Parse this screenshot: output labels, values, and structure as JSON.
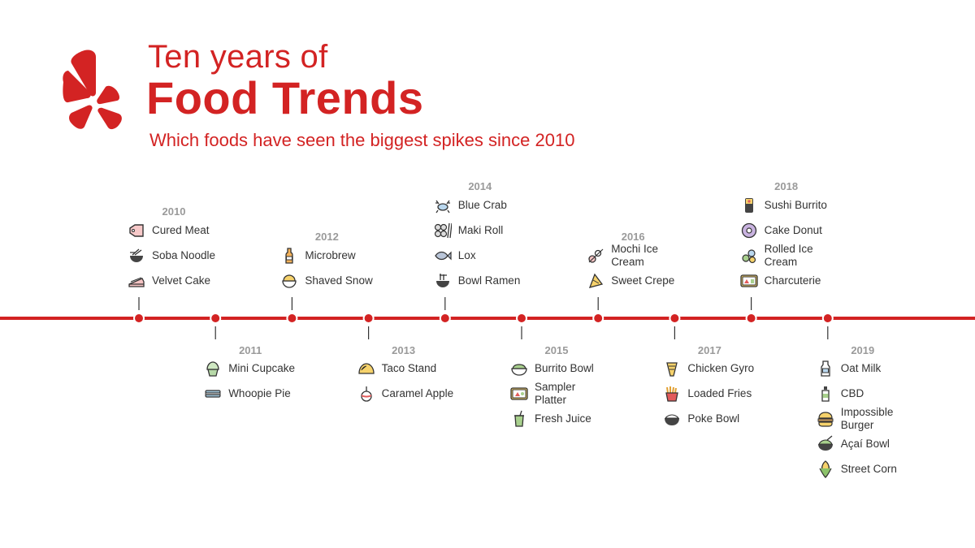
{
  "header": {
    "title_line1": "Ten years of",
    "title_line2": "Food Trends",
    "subtitle": "Which foods have seen the biggest spikes since 2010"
  },
  "colors": {
    "brand": "#d32323",
    "year": "#9a9a9a",
    "text": "#333333",
    "icon_stroke": "#333333"
  },
  "timeline": [
    {
      "year": "2010",
      "items": [
        {
          "label": "Cured Meat",
          "icon": "meat-tag-icon"
        },
        {
          "label": "Soba Noodle",
          "icon": "noodle-bowl-icon"
        },
        {
          "label": "Velvet Cake",
          "icon": "cake-slice-icon"
        }
      ]
    },
    {
      "year": "2011",
      "items": [
        {
          "label": "Mini Cupcake",
          "icon": "cupcake-icon"
        },
        {
          "label": "Whoopie Pie",
          "icon": "whoopie-pie-icon"
        }
      ]
    },
    {
      "year": "2012",
      "items": [
        {
          "label": "Microbrew",
          "icon": "beer-bottle-icon"
        },
        {
          "label": "Shaved Snow",
          "icon": "snow-bowl-icon"
        }
      ]
    },
    {
      "year": "2013",
      "items": [
        {
          "label": "Taco Stand",
          "icon": "taco-icon"
        },
        {
          "label": "Caramel Apple",
          "icon": "caramel-apple-icon"
        }
      ]
    },
    {
      "year": "2014",
      "items": [
        {
          "label": "Blue Crab",
          "icon": "crab-icon"
        },
        {
          "label": "Maki Roll",
          "icon": "maki-roll-icon"
        },
        {
          "label": "Lox",
          "icon": "fish-icon"
        },
        {
          "label": "Bowl Ramen",
          "icon": "ramen-bowl-icon"
        }
      ]
    },
    {
      "year": "2015",
      "items": [
        {
          "label": "Burrito Bowl",
          "icon": "burrito-bowl-icon"
        },
        {
          "label": "Sampler Platter",
          "icon": "platter-icon"
        },
        {
          "label": "Fresh Juice",
          "icon": "juice-cup-icon"
        }
      ]
    },
    {
      "year": "2016",
      "items": [
        {
          "label": "Mochi Ice Cream",
          "icon": "mochi-icon"
        },
        {
          "label": "Sweet Crepe",
          "icon": "crepe-icon"
        }
      ]
    },
    {
      "year": "2017",
      "items": [
        {
          "label": "Chicken Gyro",
          "icon": "gyro-icon"
        },
        {
          "label": "Loaded Fries",
          "icon": "fries-icon"
        },
        {
          "label": "Poke Bowl",
          "icon": "poke-bowl-icon"
        }
      ]
    },
    {
      "year": "2018",
      "items": [
        {
          "label": "Sushi Burrito",
          "icon": "sushi-burrito-icon"
        },
        {
          "label": "Cake Donut",
          "icon": "donut-icon"
        },
        {
          "label": "Rolled Ice Cream",
          "icon": "rolled-ice-cream-icon"
        },
        {
          "label": "Charcuterie",
          "icon": "charcuterie-board-icon"
        }
      ]
    },
    {
      "year": "2019",
      "items": [
        {
          "label": "Oat Milk",
          "icon": "milk-bottle-icon"
        },
        {
          "label": "CBD",
          "icon": "cbd-bottle-icon"
        },
        {
          "label": "Impossible Burger",
          "icon": "burger-icon"
        },
        {
          "label": "Açaí Bowl",
          "icon": "acai-bowl-icon"
        },
        {
          "label": "Street Corn",
          "icon": "corn-icon"
        }
      ]
    }
  ]
}
